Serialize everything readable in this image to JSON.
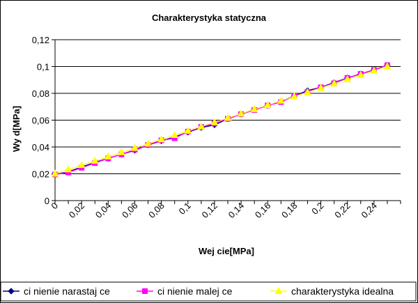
{
  "chart_data": {
    "type": "line",
    "title": "Charakterystyka statyczna",
    "xlabel": "Wej  cie[MPa]",
    "ylabel": "Wy  d[MPa]",
    "x_ticks": [
      "0",
      "0,02",
      "0,04",
      "0,06",
      "0,08",
      "0,1",
      "0,12",
      "0,14",
      "0,16",
      "0,18",
      "0,2",
      "0,22",
      "0,24"
    ],
    "y_ticks": [
      "0",
      "0,02",
      "0,04",
      "0,06",
      "0,08",
      "0,1",
      "0,12"
    ],
    "xlim": [
      0,
      0.26
    ],
    "ylim": [
      0,
      0.12
    ],
    "grid": "horizontal",
    "legend_position": "bottom",
    "series": [
      {
        "name": "ci  nienie narastaj  ce",
        "color": "#000080",
        "marker": "diamond",
        "x": [
          0.0,
          0.01,
          0.02,
          0.03,
          0.04,
          0.05,
          0.06,
          0.07,
          0.08,
          0.09,
          0.1,
          0.11,
          0.12,
          0.13,
          0.14,
          0.15,
          0.16,
          0.17,
          0.18,
          0.19,
          0.2,
          0.21,
          0.22,
          0.23,
          0.24,
          0.25
        ],
        "y": [
          0.0195,
          0.0215,
          0.025,
          0.0285,
          0.0315,
          0.0345,
          0.0375,
          0.0415,
          0.0445,
          0.0475,
          0.051,
          0.0545,
          0.0565,
          0.061,
          0.0645,
          0.068,
          0.071,
          0.074,
          0.078,
          0.082,
          0.0845,
          0.088,
          0.0915,
          0.0945,
          0.0975,
          0.101
        ]
      },
      {
        "name": "ci  nienie malej  ce",
        "color": "#FF00FF",
        "marker": "square",
        "x": [
          0.0,
          0.01,
          0.02,
          0.03,
          0.04,
          0.05,
          0.06,
          0.07,
          0.08,
          0.09,
          0.1,
          0.11,
          0.12,
          0.13,
          0.14,
          0.15,
          0.16,
          0.17,
          0.18,
          0.19,
          0.2,
          0.21,
          0.22,
          0.23,
          0.24,
          0.25
        ],
        "y": [
          0.0195,
          0.021,
          0.0245,
          0.028,
          0.0315,
          0.0345,
          0.038,
          0.0415,
          0.045,
          0.0465,
          0.0515,
          0.055,
          0.0575,
          0.061,
          0.0645,
          0.0675,
          0.071,
          0.0735,
          0.078,
          0.081,
          0.0845,
          0.0875,
          0.0915,
          0.0945,
          0.0975,
          0.101
        ]
      },
      {
        "name": "charakterystyka idealna",
        "color": "#FFFF00",
        "marker": "triangle",
        "x": [
          0.0,
          0.01,
          0.02,
          0.03,
          0.04,
          0.05,
          0.06,
          0.07,
          0.08,
          0.09,
          0.1,
          0.11,
          0.12,
          0.13,
          0.14,
          0.15,
          0.16,
          0.17,
          0.18,
          0.19,
          0.2,
          0.21,
          0.22,
          0.23,
          0.24,
          0.25
        ],
        "y": [
          0.02,
          0.0232,
          0.0264,
          0.0296,
          0.0328,
          0.036,
          0.0392,
          0.0424,
          0.0456,
          0.0488,
          0.052,
          0.0552,
          0.0584,
          0.0616,
          0.0648,
          0.068,
          0.0712,
          0.0744,
          0.0776,
          0.0808,
          0.084,
          0.0872,
          0.0904,
          0.0936,
          0.0968,
          0.1
        ]
      }
    ]
  }
}
